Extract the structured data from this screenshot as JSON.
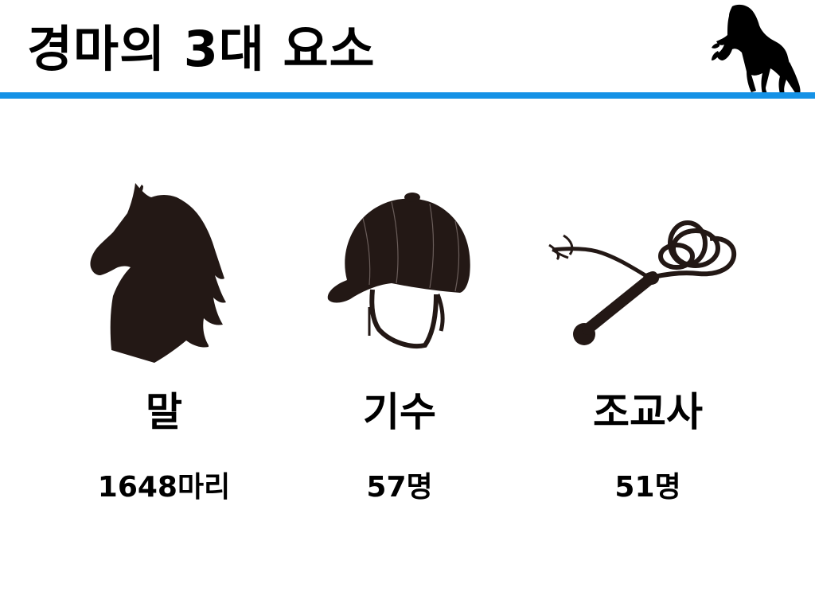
{
  "slide": {
    "title": "경마의 3대 요소",
    "accent_color": "#1592e6"
  },
  "logo": {
    "icon": "rearing-horse-icon"
  },
  "elements": [
    {
      "name": "말",
      "count": "1648마리",
      "icon": "horse-head-icon"
    },
    {
      "name": "기수",
      "count": "57명",
      "icon": "riding-helmet-icon"
    },
    {
      "name": "조교사",
      "count": "51명",
      "icon": "riding-whip-icon"
    }
  ],
  "icon_color": "#231815"
}
